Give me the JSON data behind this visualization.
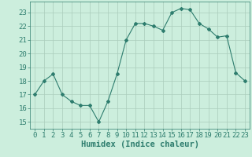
{
  "x": [
    0,
    1,
    2,
    3,
    4,
    5,
    6,
    7,
    8,
    9,
    10,
    11,
    12,
    13,
    14,
    15,
    16,
    17,
    18,
    19,
    20,
    21,
    22,
    23
  ],
  "y": [
    17,
    18,
    18.5,
    17,
    16.5,
    16.2,
    16.2,
    15,
    16.5,
    18.5,
    21,
    22.2,
    22.2,
    22,
    21.7,
    23,
    23.3,
    23.2,
    22.2,
    21.8,
    21.2,
    21.3,
    18.6,
    18
  ],
  "line_color": "#2e7d6e",
  "marker": "D",
  "marker_size": 2.0,
  "bg_color": "#cceedd",
  "grid_color": "#aaccbb",
  "xlabel": "Humidex (Indice chaleur)",
  "ylim": [
    14.5,
    23.8
  ],
  "xlim": [
    -0.5,
    23.5
  ],
  "yticks": [
    15,
    16,
    17,
    18,
    19,
    20,
    21,
    22,
    23
  ],
  "xticks": [
    0,
    1,
    2,
    3,
    4,
    5,
    6,
    7,
    8,
    9,
    10,
    11,
    12,
    13,
    14,
    15,
    16,
    17,
    18,
    19,
    20,
    21,
    22,
    23
  ],
  "tick_fontsize": 6.5,
  "xlabel_fontsize": 7.5
}
